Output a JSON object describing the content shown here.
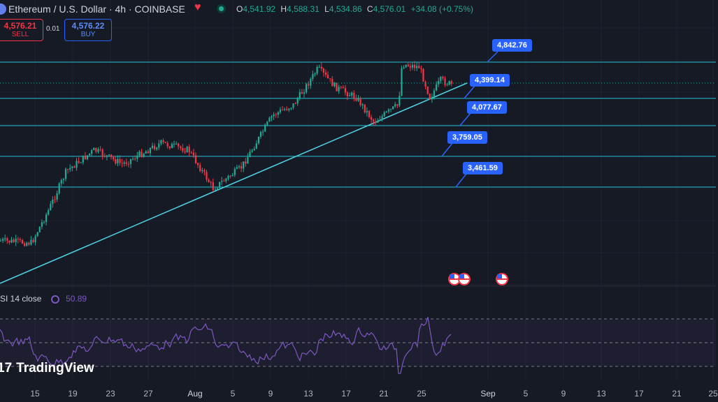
{
  "header": {
    "title": "Ethereum / U.S. Dollar · 4h · COINBASE",
    "ohlc": {
      "o_label": "O",
      "o": "4,541.92",
      "h_label": "H",
      "h": "4,588.31",
      "l_label": "L",
      "l": "4,534.86",
      "c_label": "C",
      "c": "4,576.01",
      "change": "+34.08 (+0.75%)"
    }
  },
  "trade": {
    "sell_price": "4,576.21",
    "sell_label": "SELL",
    "spread": "0.01",
    "buy_price": "4,576.22",
    "buy_label": "BUY"
  },
  "price_labels": [
    "4,842.76",
    "4,399.14",
    "4,077.67",
    "3,759.05",
    "3,461.59"
  ],
  "rsi": {
    "label": "SI 14 close",
    "value": "50.89"
  },
  "brand": {
    "name": "TradingView"
  },
  "x_axis": [
    "15",
    "19",
    "23",
    "27",
    "Aug",
    "5",
    "9",
    "13",
    "17",
    "21",
    "25",
    "Sep",
    "5",
    "9",
    "13",
    "17",
    "21",
    "25"
  ],
  "colors": {
    "background": "#161a25",
    "up": "#22ab94",
    "down": "#f23645",
    "level_line": "#22c4d4",
    "trendline": "#4dd0e1",
    "label_bg": "#2962ff",
    "rsi": "#7e57c2"
  }
}
